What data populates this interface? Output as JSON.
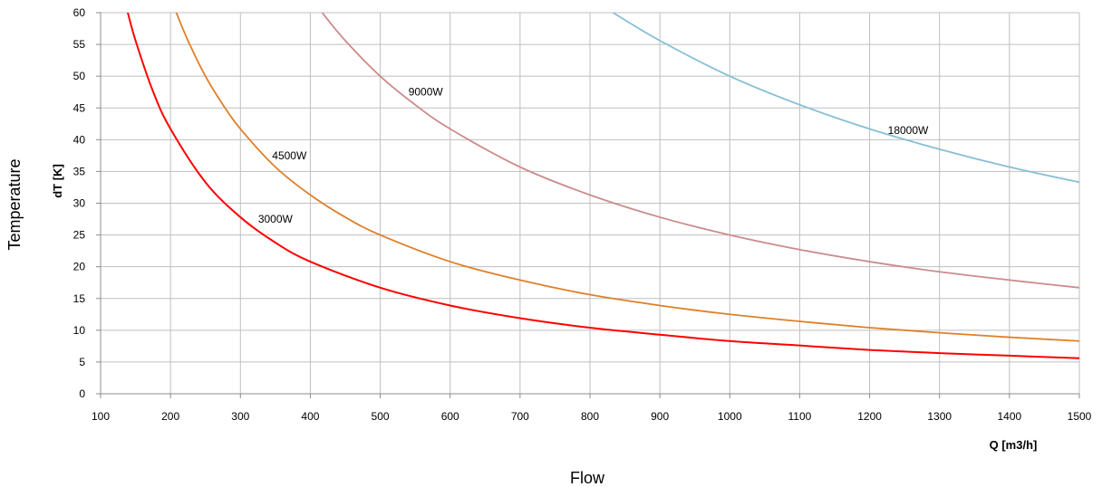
{
  "chart_data": {
    "type": "line",
    "outer_xlabel": "Flow",
    "outer_ylabel": "Temperature",
    "xlabel": "Q [m3/h]",
    "ylabel": "dT [K]",
    "xlim": [
      100,
      1500
    ],
    "ylim": [
      0,
      60
    ],
    "x_ticks": [
      100,
      200,
      300,
      400,
      500,
      600,
      700,
      800,
      900,
      1000,
      1100,
      1200,
      1300,
      1400,
      1500
    ],
    "y_ticks": [
      0,
      5,
      10,
      15,
      20,
      25,
      30,
      35,
      40,
      45,
      50,
      55,
      60
    ],
    "grid": true,
    "legend": "none",
    "series": [
      {
        "name": "3000W",
        "color": "#ff0000",
        "x": [
          138,
          150,
          175,
          200,
          250,
          300,
          350,
          400,
          500,
          600,
          700,
          800,
          900,
          1000,
          1100,
          1200,
          1300,
          1400,
          1500
        ],
        "y": [
          60.4,
          55.6,
          47.6,
          41.7,
          33.3,
          27.8,
          23.8,
          20.8,
          16.7,
          13.9,
          11.9,
          10.4,
          9.3,
          8.3,
          7.6,
          6.9,
          6.4,
          6.0,
          5.6
        ]
      },
      {
        "name": "4500W",
        "color": "#e07f28",
        "x": [
          208,
          225,
          250,
          275,
          300,
          350,
          400,
          450,
          500,
          600,
          700,
          800,
          900,
          1000,
          1100,
          1200,
          1300,
          1400,
          1500
        ],
        "y": [
          60.1,
          55.6,
          50.0,
          45.5,
          41.7,
          35.7,
          31.3,
          27.8,
          25.0,
          20.8,
          17.9,
          15.6,
          13.9,
          12.5,
          11.4,
          10.4,
          9.6,
          8.9,
          8.3
        ]
      },
      {
        "name": "9000W",
        "color": "#cc8c8c",
        "x": [
          417,
          450,
          500,
          550,
          600,
          700,
          800,
          900,
          1000,
          1100,
          1200,
          1300,
          1400,
          1500
        ],
        "y": [
          60.0,
          55.6,
          50.0,
          45.5,
          41.7,
          35.7,
          31.3,
          27.8,
          25.0,
          22.7,
          20.8,
          19.2,
          17.9,
          16.7
        ]
      },
      {
        "name": "18000W",
        "color": "#87bfd4",
        "x": [
          833,
          900,
          1000,
          1100,
          1200,
          1300,
          1400,
          1500
        ],
        "y": [
          60.0,
          55.6,
          50.0,
          45.5,
          41.7,
          38.5,
          35.7,
          33.3
        ]
      }
    ],
    "annotations": [
      {
        "text": "3000W",
        "x": 350,
        "y": 27.5
      },
      {
        "text": "4500W",
        "x": 370,
        "y": 37.5
      },
      {
        "text": "9000W",
        "x": 565,
        "y": 47.5
      },
      {
        "text": "18000W",
        "x": 1255,
        "y": 41.5
      }
    ]
  }
}
